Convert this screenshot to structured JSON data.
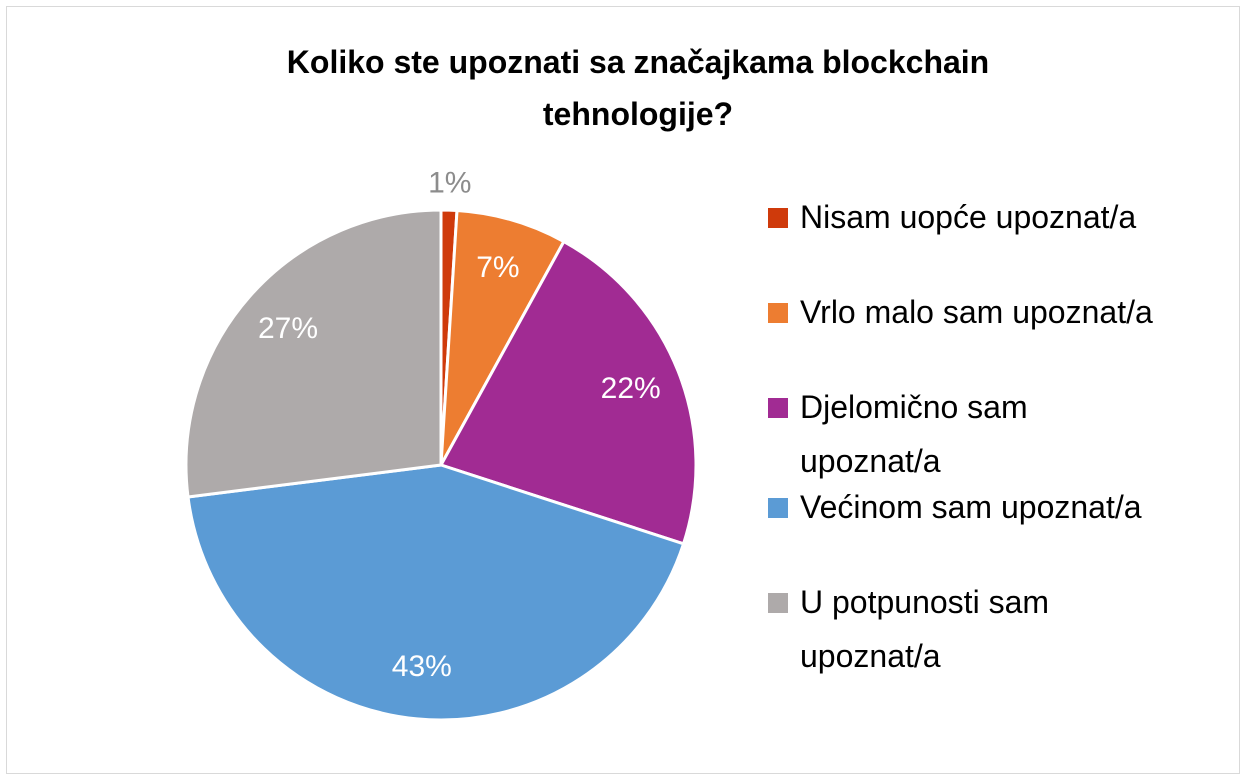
{
  "chart_data": {
    "type": "pie",
    "title": "Koliko ste upoznati sa značajkama blockchain tehnologije?",
    "categories": [
      "Nisam uopće upoznat/a",
      "Vrlo malo sam upoznat/a",
      "Djelomično sam upoznat/a",
      "Većinom sam upoznat/a",
      "U potpunosti sam upoznat/a"
    ],
    "values": [
      1,
      7,
      22,
      43,
      27
    ],
    "value_labels": [
      "1%",
      "7%",
      "22%",
      "43%",
      "27%"
    ],
    "colors": [
      "#cf3a0b",
      "#ed7d31",
      "#a12b93",
      "#5b9bd5",
      "#aeaaaa"
    ],
    "legend": "right"
  }
}
